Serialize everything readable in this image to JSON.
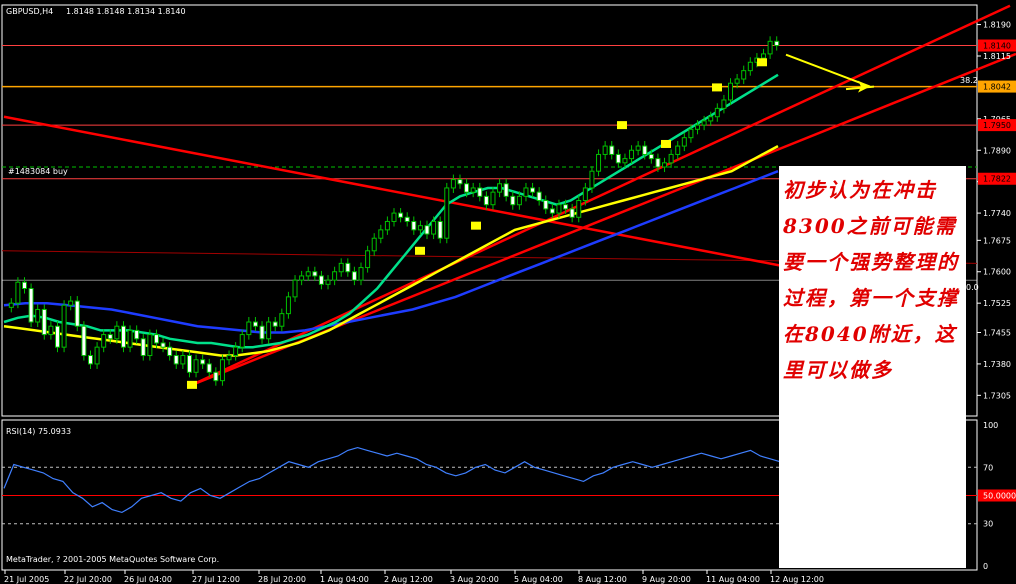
{
  "header": {
    "symbol_label": "GBPUSD,H4",
    "ohlc": "1.8148 1.8148 1.8134 1.8140",
    "order_label": "#1483084 buy",
    "copyright": "MetaTrader, ? 2001-2005 MetaQuotes Software Corp."
  },
  "annotation": {
    "text": "初步认为在冲击8300之前可能需要一个强势整理的过程，第一个支撑在8040附近，这里可以做多"
  },
  "colors": {
    "background": "#000000",
    "grid_text": "#ffffff",
    "candle_up": "#00c000",
    "trendline": "#ff0000",
    "fib_line": "#ffa500",
    "ma_fast": "#00e08a",
    "ma_mid": "#ffff00",
    "ma_slow": "#1e3cff",
    "rsi_line": "#4080ff",
    "marker": "#ffff00",
    "note_text": "#e00000"
  },
  "chart_data": {
    "type": "candlestick",
    "price_axis": {
      "ticks": [
        "1.8190",
        "1.8115",
        "1.7965",
        "1.7890",
        "1.7815",
        "1.7740",
        "1.7675",
        "1.7600",
        "1.7525",
        "1.7455",
        "1.7380",
        "1.7305"
      ],
      "ylim": [
        1.727,
        1.822
      ]
    },
    "price_tags": [
      {
        "label": "1.8140",
        "value": 1.814
      },
      {
        "label": "1.8042",
        "value": 1.8042
      },
      {
        "label": "1.7950",
        "value": 1.795
      },
      {
        "label": "1.7822",
        "value": 1.7822
      }
    ],
    "fib_labels": [
      "38.2",
      "0.0"
    ],
    "time_axis": [
      "21 Jul 2005",
      "22 Jul 20:00",
      "26 Jul 04:00",
      "27 Jul 12:00",
      "28 Jul 20:00",
      "1 Aug 04:00",
      "2 Aug 12:00",
      "3 Aug 20:00",
      "5 Aug 04:00",
      "8 Aug 12:00",
      "9 Aug 20:00",
      "11 Aug 04:00",
      "12 Aug 12:00"
    ],
    "close": [
      1.7525,
      1.7575,
      1.756,
      1.748,
      1.751,
      1.745,
      1.747,
      1.742,
      1.752,
      1.753,
      1.747,
      1.74,
      1.738,
      1.742,
      1.745,
      1.744,
      1.747,
      1.742,
      1.746,
      1.744,
      1.74,
      1.745,
      1.743,
      1.742,
      1.74,
      1.738,
      1.74,
      1.736,
      1.739,
      1.738,
      1.736,
      1.734,
      1.739,
      1.74,
      1.742,
      1.745,
      1.748,
      1.747,
      1.744,
      1.748,
      1.747,
      1.75,
      1.754,
      1.758,
      1.759,
      1.76,
      1.759,
      1.757,
      1.758,
      1.76,
      1.762,
      1.76,
      1.758,
      1.761,
      1.765,
      1.768,
      1.77,
      1.772,
      1.774,
      1.773,
      1.772,
      1.77,
      1.771,
      1.769,
      1.772,
      1.768,
      1.78,
      1.782,
      1.781,
      1.779,
      1.78,
      1.778,
      1.776,
      1.779,
      1.781,
      1.778,
      1.776,
      1.778,
      1.78,
      1.779,
      1.777,
      1.775,
      1.774,
      1.776,
      1.775,
      1.773,
      1.777,
      1.78,
      1.784,
      1.788,
      1.79,
      1.788,
      1.786,
      1.787,
      1.789,
      1.79,
      1.788,
      1.787,
      1.785,
      1.786,
      1.788,
      1.79,
      1.792,
      1.794,
      1.795,
      1.796,
      1.797,
      1.799,
      1.801,
      1.805,
      1.806,
      1.808,
      1.81,
      1.811,
      1.812,
      1.815,
      1.814
    ],
    "ma_fast": [
      1.748,
      1.749,
      1.7495,
      1.749,
      1.748,
      1.7475,
      1.747,
      1.746,
      1.746,
      1.746,
      1.7455,
      1.745,
      1.744,
      1.7435,
      1.743,
      1.743,
      1.7425,
      1.742,
      1.742,
      1.7425,
      1.743,
      1.744,
      1.745,
      1.7465,
      1.748,
      1.75,
      1.753,
      1.756,
      1.76,
      1.764,
      1.768,
      1.772,
      1.776,
      1.778,
      1.779,
      1.78,
      1.78,
      1.779,
      1.778,
      1.777,
      1.776,
      1.777,
      1.779,
      1.781,
      1.783,
      1.785,
      1.787,
      1.789,
      1.791,
      1.793,
      1.795,
      1.797,
      1.799,
      1.801,
      1.803,
      1.805,
      1.807
    ],
    "ma_mid": [
      1.747,
      1.7465,
      1.746,
      1.7455,
      1.745,
      1.7445,
      1.744,
      1.7435,
      1.743,
      1.7425,
      1.742,
      1.7415,
      1.741,
      1.7405,
      1.74,
      1.74,
      1.7405,
      1.741,
      1.742,
      1.743,
      1.7445,
      1.746,
      1.748,
      1.75,
      1.752,
      1.754,
      1.756,
      1.758,
      1.76,
      1.762,
      1.764,
      1.766,
      1.768,
      1.77,
      1.771,
      1.772,
      1.773,
      1.774,
      1.775,
      1.776,
      1.777,
      1.778,
      1.779,
      1.78,
      1.781,
      1.782,
      1.783,
      1.784,
      1.786,
      1.788,
      1.79
    ],
    "ma_slow": [
      1.752,
      1.7525,
      1.7525,
      1.752,
      1.7515,
      1.751,
      1.75,
      1.749,
      1.748,
      1.747,
      1.7465,
      1.746,
      1.7455,
      1.7455,
      1.746,
      1.747,
      1.748,
      1.749,
      1.75,
      1.751,
      1.7525,
      1.754,
      1.756,
      1.758,
      1.76,
      1.762,
      1.764,
      1.766,
      1.768,
      1.77,
      1.772,
      1.774,
      1.776,
      1.778,
      1.78,
      1.782,
      1.784
    ],
    "markers": [
      1.733,
      1.765,
      1.771,
      1.795,
      1.7905,
      1.804,
      1.81
    ],
    "rsi": {
      "label": "RSI(14) 75.0933",
      "ticks": [
        "100",
        "70",
        "50.0000",
        "30",
        "0"
      ],
      "ylim": [
        0,
        100
      ],
      "values": [
        55,
        72,
        70,
        68,
        66,
        62,
        60,
        52,
        48,
        42,
        45,
        40,
        38,
        42,
        48,
        50,
        52,
        48,
        46,
        52,
        55,
        50,
        48,
        52,
        56,
        60,
        62,
        66,
        70,
        74,
        72,
        70,
        74,
        76,
        78,
        82,
        84,
        82,
        80,
        78,
        80,
        78,
        76,
        72,
        70,
        66,
        64,
        66,
        70,
        72,
        68,
        66,
        70,
        74,
        70,
        68,
        66,
        64,
        62,
        60,
        64,
        66,
        70,
        72,
        74,
        72,
        70,
        72,
        74,
        76,
        78,
        80,
        78,
        76,
        78,
        80,
        82,
        78,
        76,
        74
      ]
    }
  }
}
